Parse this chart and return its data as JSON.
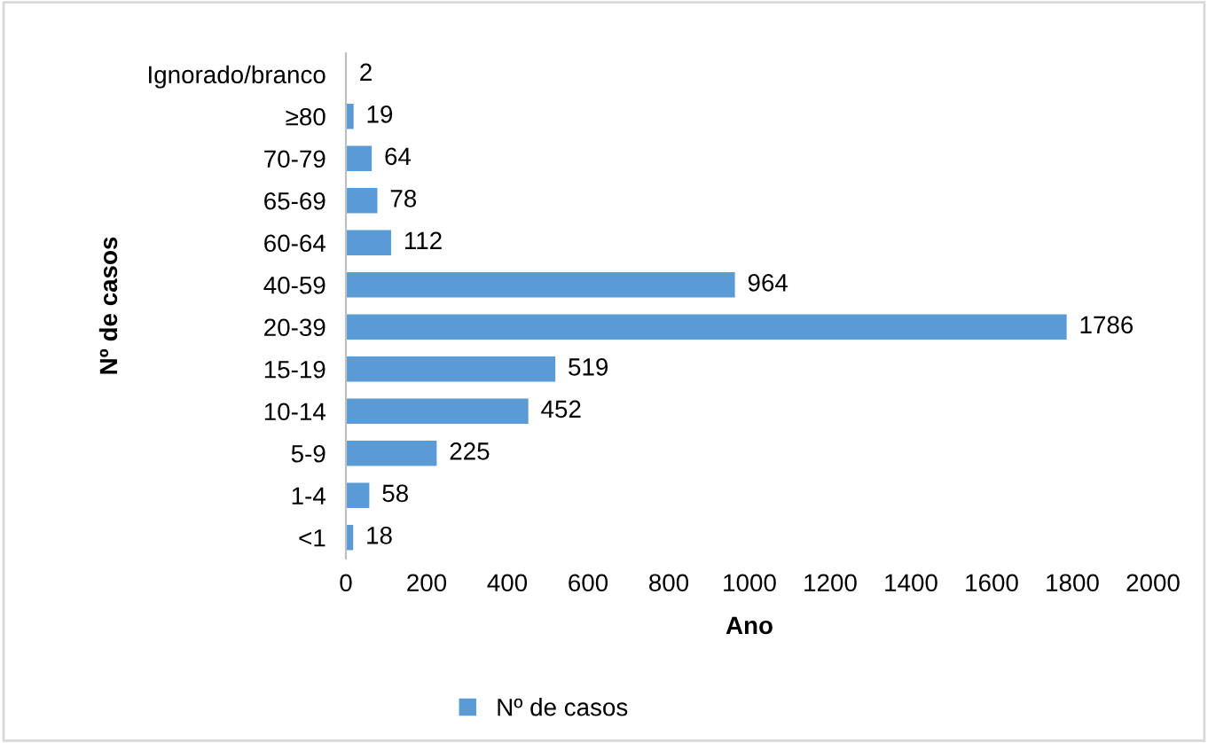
{
  "chart_data": {
    "type": "bar",
    "orientation": "horizontal",
    "xlabel": "Ano",
    "ylabel": "Nº de casos",
    "categories": [
      "Ignorado/branco",
      "≥80",
      "70-79",
      "65-69",
      "60-64",
      "40-59",
      "20-39",
      "15-19",
      "10-14",
      "5-9",
      "1-4",
      "<1"
    ],
    "series": [
      {
        "name": "Nº de casos",
        "color": "#5b9bd5",
        "values": [
          2,
          19,
          64,
          78,
          112,
          964,
          1786,
          519,
          452,
          225,
          58,
          18
        ]
      }
    ],
    "xlim": [
      0,
      2000
    ],
    "xticks": [
      0,
      200,
      400,
      600,
      800,
      1000,
      1200,
      1400,
      1600,
      1800,
      2000
    ],
    "data_labels": true,
    "legend": "bottom",
    "grid": false
  }
}
